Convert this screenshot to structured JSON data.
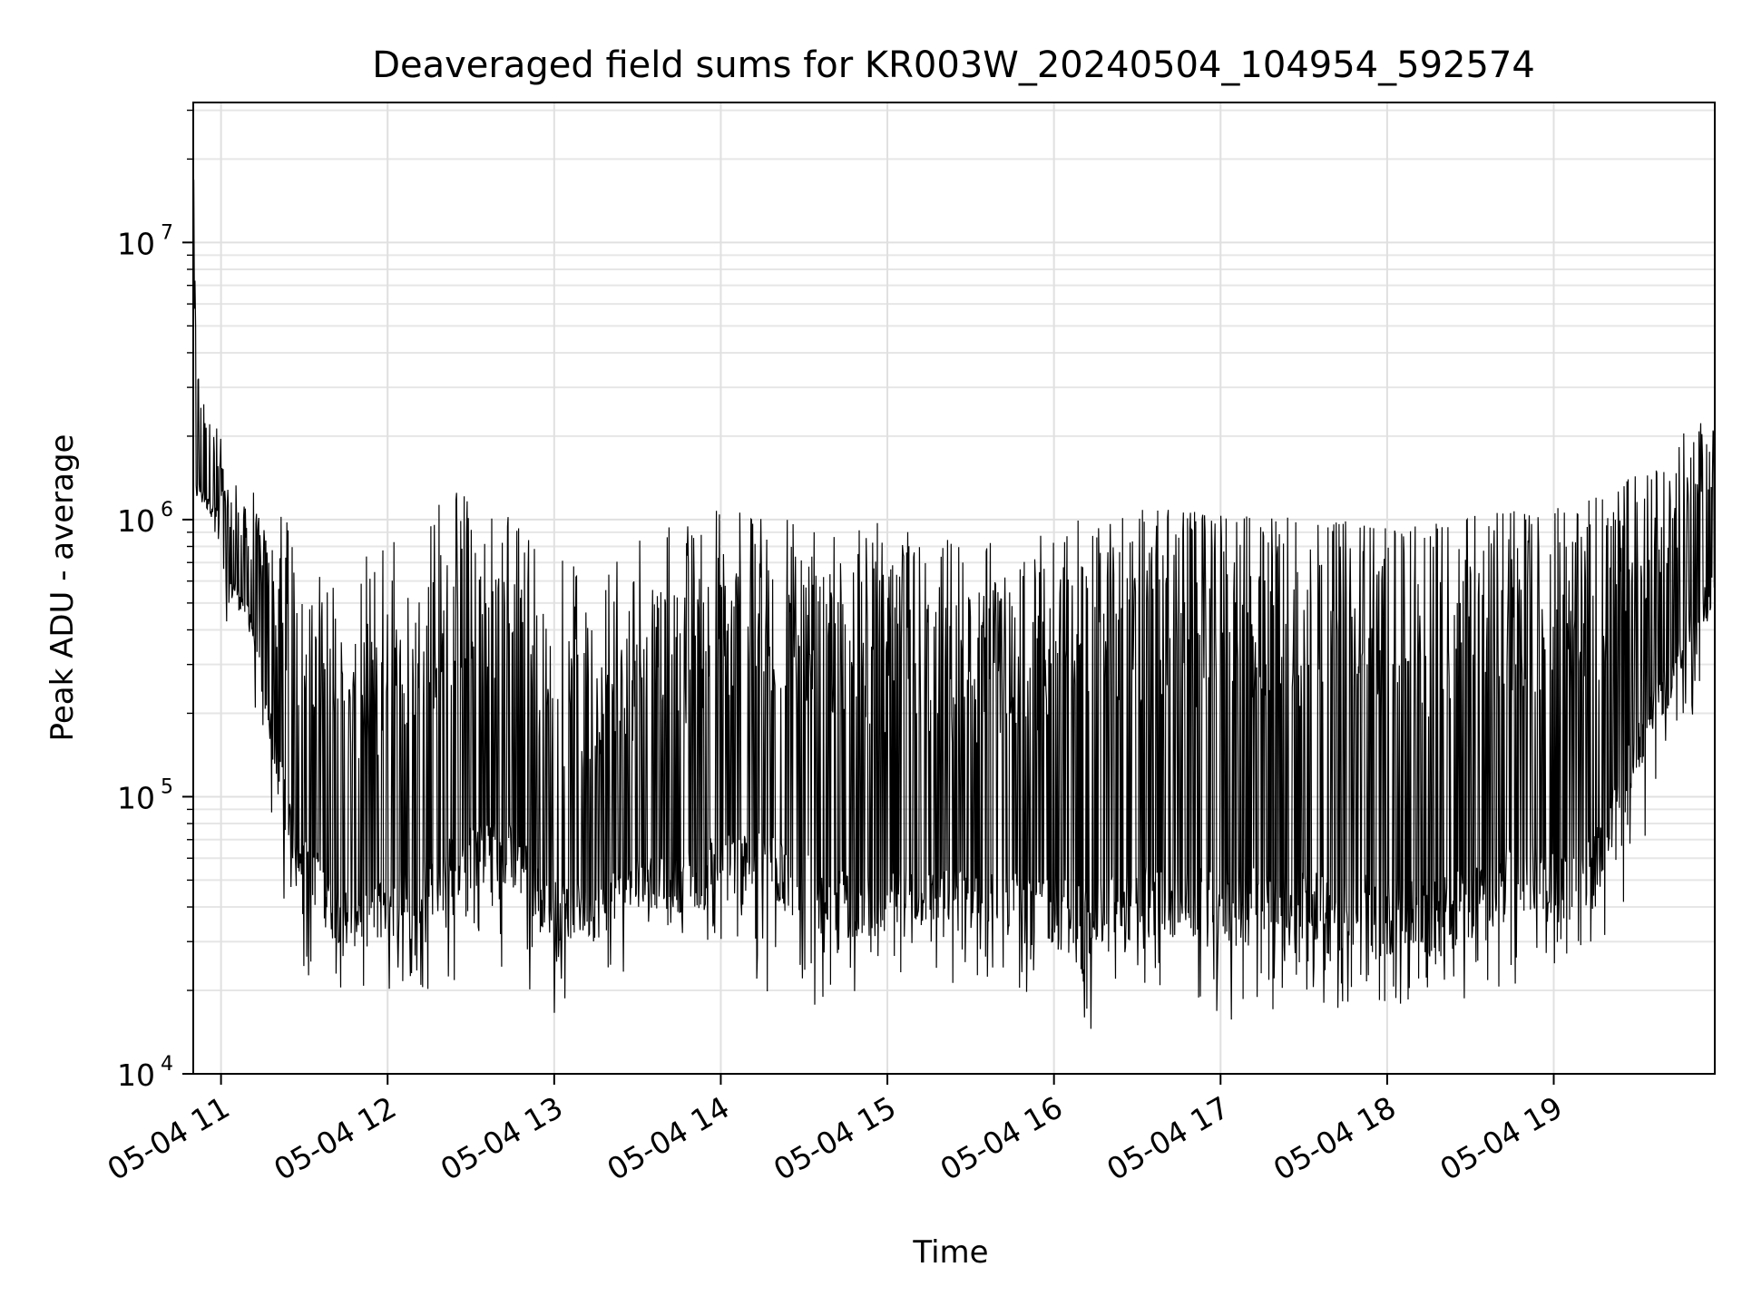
{
  "chart_data": {
    "type": "line",
    "title": "Deaveraged field sums for KR003W_20240504_104954_592574",
    "xlabel": "Time",
    "ylabel": "Peak ADU - average",
    "xscale": "time",
    "yscale": "log",
    "xlim": [
      "2024-05-04 10:50",
      "2024-05-04 19:58"
    ],
    "ylim": [
      10000,
      32000000
    ],
    "grid": true,
    "grid_minor": true,
    "legend": "none",
    "line_color": "#000000",
    "x_ticks": [
      {
        "value": "2024-05-04 11:00",
        "label": "05-04 11"
      },
      {
        "value": "2024-05-04 12:00",
        "label": "05-04 12"
      },
      {
        "value": "2024-05-04 13:00",
        "label": "05-04 13"
      },
      {
        "value": "2024-05-04 14:00",
        "label": "05-04 14"
      },
      {
        "value": "2024-05-04 15:00",
        "label": "05-04 15"
      },
      {
        "value": "2024-05-04 16:00",
        "label": "05-04 16"
      },
      {
        "value": "2024-05-04 17:00",
        "label": "05-04 17"
      },
      {
        "value": "2024-05-04 18:00",
        "label": "05-04 18"
      },
      {
        "value": "2024-05-04 19:00",
        "label": "05-04 19"
      }
    ],
    "y_ticks": [
      {
        "value": 10000,
        "base": "10",
        "exp": "4"
      },
      {
        "value": 100000,
        "base": "10",
        "exp": "5"
      },
      {
        "value": 1000000,
        "base": "10",
        "exp": "6"
      },
      {
        "value": 10000000,
        "base": "10",
        "exp": "7"
      }
    ],
    "series": [
      {
        "x": [
          "2024-05-04 10:50",
          "2024-05-04 10:51",
          "2024-05-04 10:53",
          "2024-05-04 10:56",
          "2024-05-04 10:59",
          "2024-05-04 11:02",
          "2024-05-04 11:05",
          "2024-05-04 11:10",
          "2024-05-04 11:15",
          "2024-05-04 11:20",
          "2024-05-04 11:25",
          "2024-05-04 11:30",
          "2024-05-04 11:35",
          "2024-05-04 11:40",
          "2024-05-04 11:50",
          "2024-05-04 12:00",
          "2024-05-04 12:15",
          "2024-05-04 12:30",
          "2024-05-04 12:45",
          "2024-05-04 13:00",
          "2024-05-04 13:15",
          "2024-05-04 13:30",
          "2024-05-04 13:45",
          "2024-05-04 14:00",
          "2024-05-04 14:15",
          "2024-05-04 14:30",
          "2024-05-04 14:45",
          "2024-05-04 15:00",
          "2024-05-04 15:15",
          "2024-05-04 15:30",
          "2024-05-04 15:45",
          "2024-05-04 16:00",
          "2024-05-04 16:15",
          "2024-05-04 16:30",
          "2024-05-04 16:45",
          "2024-05-04 17:00",
          "2024-05-04 17:15",
          "2024-05-04 17:30",
          "2024-05-04 17:45",
          "2024-05-04 18:00",
          "2024-05-04 18:15",
          "2024-05-04 18:30",
          "2024-05-04 18:45",
          "2024-05-04 19:00",
          "2024-05-04 19:15",
          "2024-05-04 19:30",
          "2024-05-04 19:40",
          "2024-05-04 19:50",
          "2024-05-04 19:58"
        ],
        "low": [
          1200000,
          1100000,
          1100000,
          1050000,
          900000,
          500000,
          500000,
          400000,
          220000,
          110000,
          60000,
          45000,
          38000,
          30000,
          28000,
          30000,
          35000,
          45000,
          45000,
          30000,
          30000,
          40000,
          38000,
          40000,
          40000,
          35000,
          30000,
          30000,
          33000,
          32000,
          30000,
          28000,
          25000,
          30000,
          30000,
          28000,
          28000,
          27000,
          27000,
          26000,
          25000,
          30000,
          35000,
          38000,
          40000,
          120000,
          200000,
          350000,
          500000
        ],
        "high": [
          23000000,
          5500000,
          2600000,
          2300000,
          2200000,
          1300000,
          1200000,
          1100000,
          1000000,
          900000,
          700000,
          600000,
          500000,
          400000,
          350000,
          500000,
          800000,
          1000000,
          900000,
          400000,
          350000,
          500000,
          600000,
          900000,
          1000000,
          700000,
          600000,
          700000,
          650000,
          500000,
          600000,
          700000,
          900000,
          950000,
          1000000,
          1000000,
          1000000,
          950000,
          950000,
          900000,
          850000,
          1000000,
          1000000,
          1000000,
          1100000,
          1300000,
          1500000,
          2000000,
          2400000
        ],
        "spike_low": [
          1000000,
          950000,
          900000,
          900000,
          800000,
          400000,
          280000,
          200000,
          130000,
          50000,
          30000,
          22000,
          22000,
          20000,
          18000,
          19000,
          20000,
          22000,
          22000,
          16000,
          20000,
          25000,
          27000,
          30000,
          18000,
          17000,
          20000,
          19000,
          20000,
          20000,
          20000,
          18000,
          14000,
          18000,
          17000,
          15000,
          16000,
          17000,
          17000,
          17000,
          17000,
          19000,
          20000,
          25000,
          27000,
          50000,
          90000,
          180000,
          300000
        ],
        "spike_high": [
          25000000,
          6000000,
          2800000,
          2500000,
          2400000,
          1400000,
          1400000,
          1300000,
          1200000,
          1200000,
          1000000,
          900000,
          800000,
          800000,
          700000,
          950000,
          1200000,
          1300000,
          1000000,
          800000,
          700000,
          900000,
          1000000,
          1100000,
          1100000,
          1000000,
          900000,
          1000000,
          900000,
          800000,
          900000,
          1000000,
          1050000,
          1100000,
          1100000,
          1050000,
          1050000,
          1000000,
          1000000,
          950000,
          950000,
          1050000,
          1100000,
          1100000,
          1200000,
          1500000,
          1900000,
          2300000,
          2500000
        ]
      }
    ]
  }
}
